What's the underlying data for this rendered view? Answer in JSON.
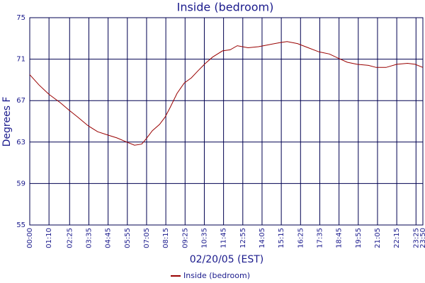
{
  "chart_data": {
    "type": "line",
    "title": "Inside (bedroom)",
    "xlabel": "02/20/05 (EST)",
    "ylabel": "Degrees F",
    "x": [
      0,
      34,
      70,
      111,
      142,
      175,
      211,
      247,
      281,
      317,
      353,
      381,
      407,
      423,
      446,
      472,
      492,
      510,
      536,
      562,
      588,
      613,
      639,
      665,
      701,
      729,
      755,
      794,
      832,
      871,
      910,
      936,
      974,
      1013,
      1052,
      1090,
      1121,
      1155,
      1191,
      1232,
      1260,
      1296,
      1335,
      1374,
      1402,
      1430
    ],
    "series": [
      {
        "name": "Inside (bedroom)",
        "color": "#990000",
        "values": [
          69.5,
          68.5,
          67.6,
          66.8,
          66.1,
          65.4,
          64.6,
          64.0,
          63.7,
          63.4,
          63.0,
          62.7,
          62.8,
          63.3,
          64.1,
          64.7,
          65.4,
          66.3,
          67.7,
          68.7,
          69.2,
          69.9,
          70.6,
          71.2,
          71.8,
          71.9,
          72.3,
          72.1,
          72.2,
          72.4,
          72.6,
          72.7,
          72.5,
          72.1,
          71.7,
          71.5,
          71.1,
          70.7,
          70.5,
          70.4,
          70.2,
          70.2,
          70.5,
          70.6,
          70.5,
          70.2
        ]
      }
    ],
    "xlim": [
      0,
      1430
    ],
    "ylim": [
      55,
      75
    ],
    "xticks": [
      {
        "value": 0,
        "label": "00:00"
      },
      {
        "value": 70,
        "label": "01:10"
      },
      {
        "value": 145,
        "label": "02:25"
      },
      {
        "value": 215,
        "label": "03:35"
      },
      {
        "value": 285,
        "label": "04:45"
      },
      {
        "value": 355,
        "label": "05:55"
      },
      {
        "value": 425,
        "label": "07:05"
      },
      {
        "value": 495,
        "label": "08:15"
      },
      {
        "value": 565,
        "label": "09:25"
      },
      {
        "value": 635,
        "label": "10:35"
      },
      {
        "value": 705,
        "label": "11:45"
      },
      {
        "value": 775,
        "label": "12:55"
      },
      {
        "value": 845,
        "label": "14:05"
      },
      {
        "value": 915,
        "label": "15:15"
      },
      {
        "value": 985,
        "label": "16:25"
      },
      {
        "value": 1055,
        "label": "17:35"
      },
      {
        "value": 1125,
        "label": "18:45"
      },
      {
        "value": 1195,
        "label": "19:55"
      },
      {
        "value": 1265,
        "label": "21:05"
      },
      {
        "value": 1335,
        "label": "22:15"
      },
      {
        "value": 1405,
        "label": "23:25"
      },
      {
        "value": 1430,
        "label": "23:50"
      }
    ],
    "yticks": [
      55,
      59,
      63,
      67,
      71,
      75
    ],
    "grid": true
  }
}
